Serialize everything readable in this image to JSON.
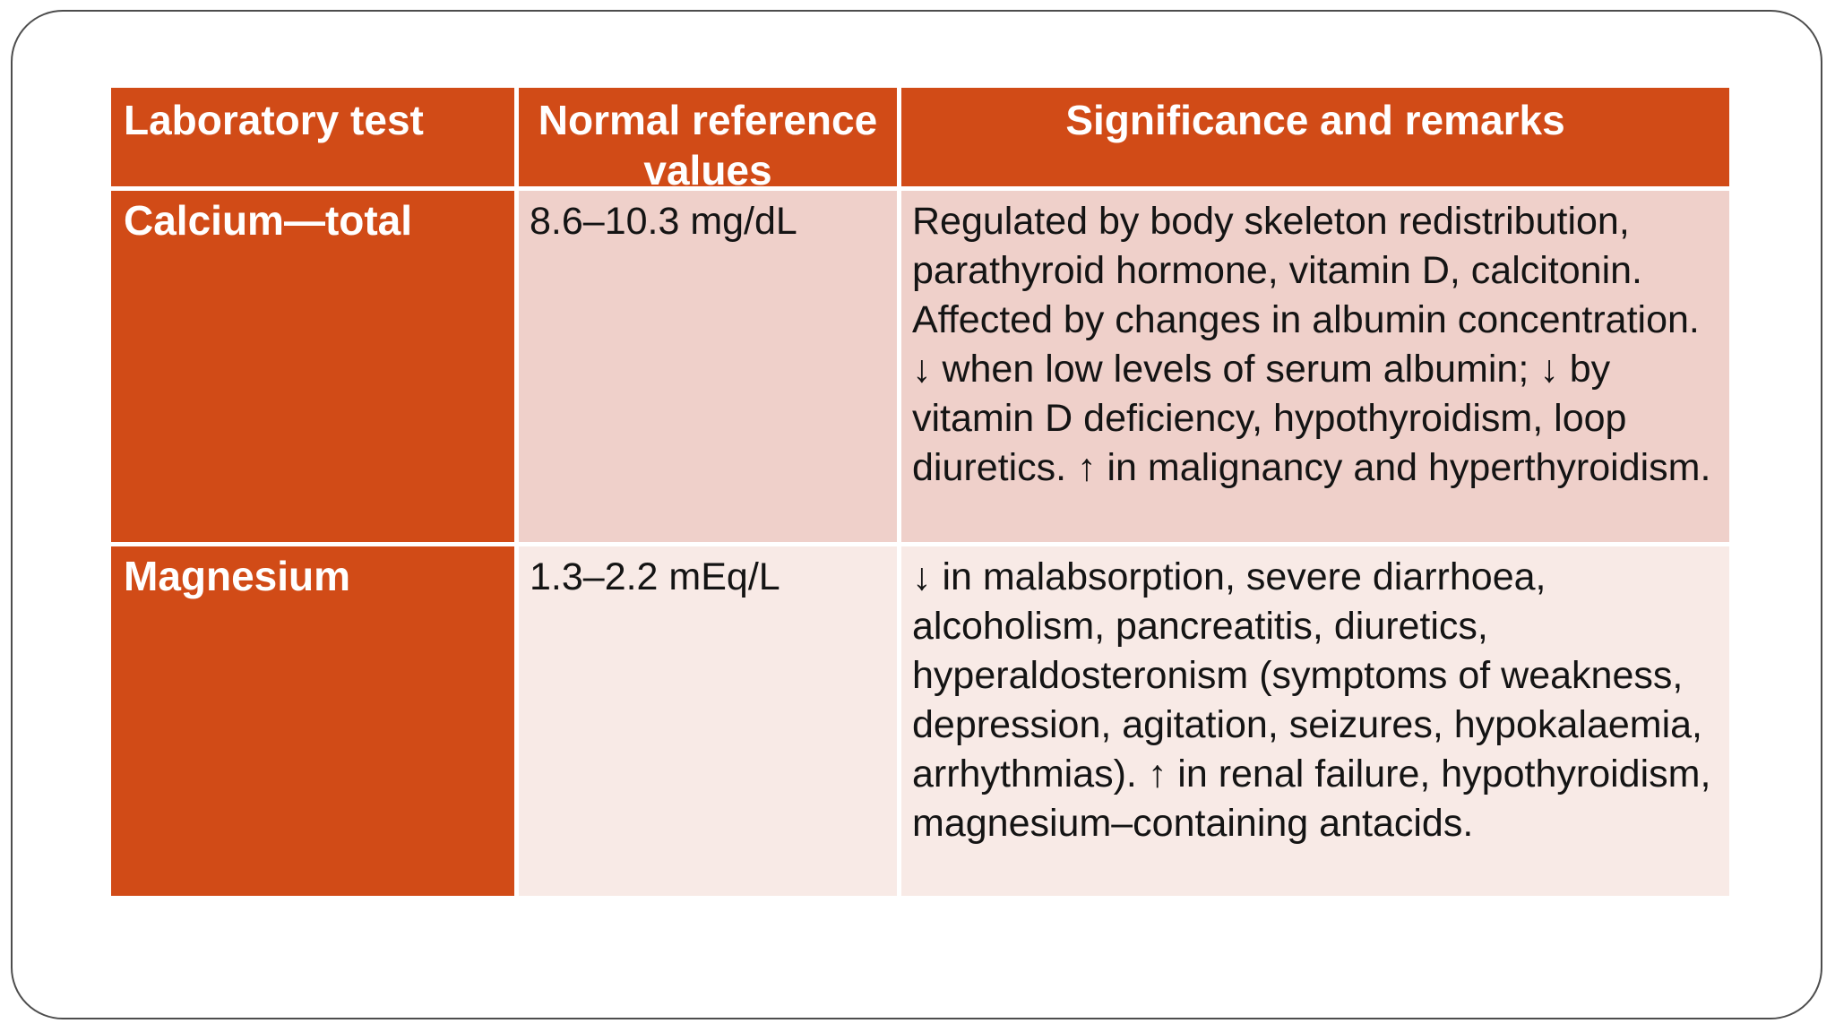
{
  "colors": {
    "accent_orange": "#d14b17",
    "row1_pink": "#efd0ca",
    "row2_pink": "#f8eae6",
    "header_text": "#ffffff",
    "body_text": "#141414",
    "card_border": "#4d4d4d"
  },
  "table": {
    "columns": [
      "Laboratory test",
      "Normal reference values",
      "Significance and remarks"
    ],
    "rows": [
      {
        "test": "Calcium—total",
        "reference": "8.6–10.3 mg/dL",
        "significance": "Regulated by body skeleton redistribution, parathyroid hormone, vitamin D, calcitonin. Affected by changes in albumin concentration. ↓ when low levels of serum albumin; ↓ by vitamin D deficiency, hypothyroidism, loop diuretics. ↑ in malignancy and hyperthyroidism."
      },
      {
        "test": "Magnesium",
        "reference": "1.3–2.2 mEq/L",
        "significance": "↓ in malabsorption, severe diarrhoea, alcoholism, pancreatitis, diuretics, hyperaldosteronism (symptoms of weakness, depression, agitation, seizures, hypokalaemia, arrhythmias). ↑ in renal failure, hypothyroidism, magnesium–containing antacids."
      }
    ]
  }
}
